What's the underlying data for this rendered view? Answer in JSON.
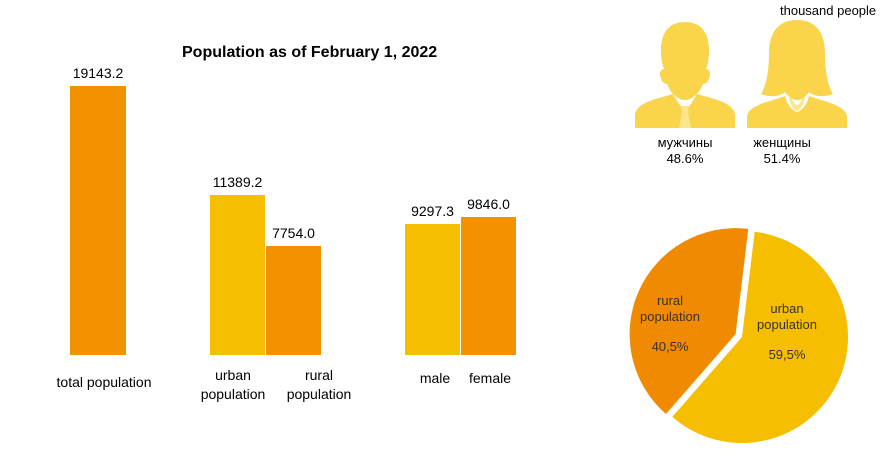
{
  "chart_data": {
    "type": "bar",
    "title": "Population as of February 1, 2022",
    "unit": "thousand people",
    "categories": [
      "total population",
      "urban population",
      "rural population",
      "male",
      "female"
    ],
    "values": [
      19143.2,
      11389.2,
      7754.0,
      9297.3,
      9846.0
    ],
    "value_labels": [
      "19143.2",
      "11389.2",
      "7754.0",
      "9297.3",
      "9846.0"
    ],
    "ylim": [
      0,
      19143.2
    ],
    "grid": false,
    "colors": {
      "orange": "#F39200",
      "yellow": "#F5BE00",
      "icon": "#FAD44B",
      "pie_orange": "#F08A00"
    }
  },
  "sex_share": {
    "male": {
      "label": "мужчины",
      "percent": "48.6%"
    },
    "female": {
      "label": "женщины",
      "percent": "51.4%"
    }
  },
  "pie": {
    "type": "pie",
    "slices": [
      {
        "label_line1": "urban",
        "label_line2": "population",
        "value": 59.5,
        "value_label": "59,5%"
      },
      {
        "label_line1": "rural",
        "label_line2": "population",
        "value": 40.5,
        "value_label": "40,5%"
      }
    ]
  }
}
